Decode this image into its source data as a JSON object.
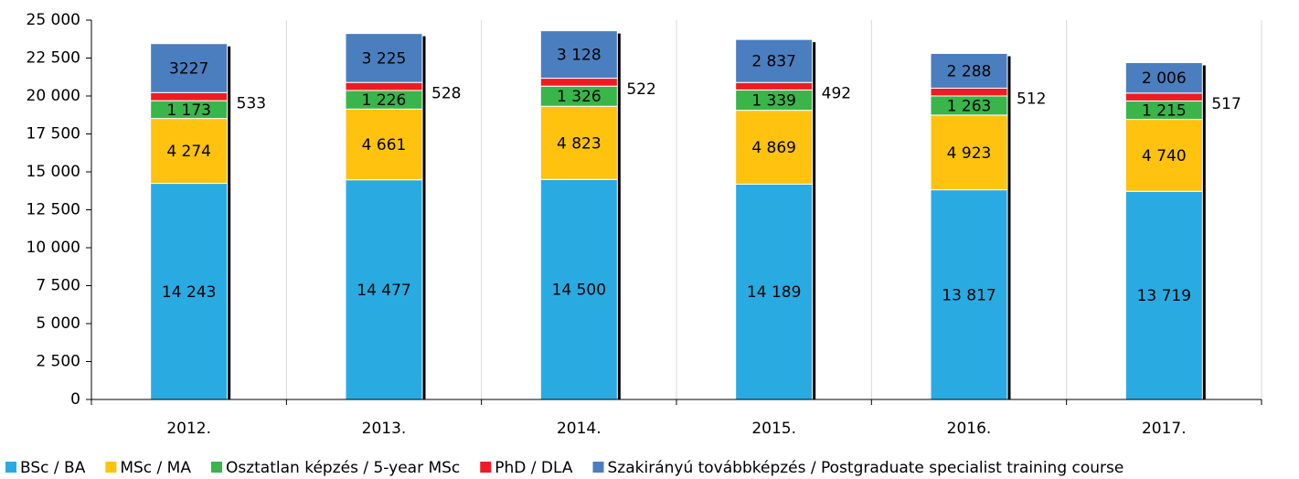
{
  "chart_data": {
    "type": "stacked_bar",
    "categories": [
      "2012.",
      "2013.",
      "2014.",
      "2015.",
      "2016.",
      "2017."
    ],
    "series": [
      {
        "name": "BSc / BA",
        "color": "#29abe2",
        "values": [
          14243,
          14477,
          14500,
          14189,
          13817,
          13719
        ],
        "value_labels": [
          "14 243",
          "14 477",
          "14 500",
          "14 189",
          "13 817",
          "13 719"
        ]
      },
      {
        "name": "MSc / MA",
        "color": "#ffc20e",
        "values": [
          4274,
          4661,
          4823,
          4869,
          4923,
          4740
        ],
        "value_labels": [
          "4 274",
          "4 661",
          "4 823",
          "4 869",
          "4 923",
          "4 740"
        ]
      },
      {
        "name": "Osztatlan képzés / 5-year MSc",
        "color": "#39b54a",
        "values": [
          1173,
          1226,
          1326,
          1339,
          1263,
          1215
        ],
        "value_labels": [
          "1 173",
          "1 226",
          "1 326",
          "1 339",
          "1 263",
          "1 215"
        ]
      },
      {
        "name": "PhD / DLA",
        "color": "#ed1c24",
        "values": [
          533,
          528,
          522,
          492,
          512,
          517
        ],
        "label_position": "outside"
      },
      {
        "name": "Szakirányú továbbképzés / Postgraduate specialist training course",
        "color": "#4a7ebf",
        "values": [
          3227,
          3225,
          3128,
          2837,
          2288,
          2006
        ],
        "value_labels": [
          "3227",
          "3 225",
          "3 128",
          "2 837",
          "2 288",
          "2 006"
        ]
      }
    ],
    "ylim": [
      0,
      25000
    ],
    "yticks": [
      0,
      {
        "value": 2500,
        "label": "2 500"
      },
      {
        "value": 5000,
        "label": "5 000"
      },
      {
        "value": 7500,
        "label": "7 500"
      },
      {
        "value": 10000,
        "label": "10 000"
      },
      {
        "value": 12500,
        "label": "12 500"
      },
      {
        "value": 15000,
        "label": "15 000"
      },
      {
        "value": 17500,
        "label": "17 500"
      },
      {
        "value": 20000,
        "label": "20 000"
      },
      {
        "value": 22500,
        "label": "22 500"
      },
      {
        "value": 25000,
        "label": "25 000"
      }
    ],
    "grid": "x",
    "legend": "bottom"
  }
}
